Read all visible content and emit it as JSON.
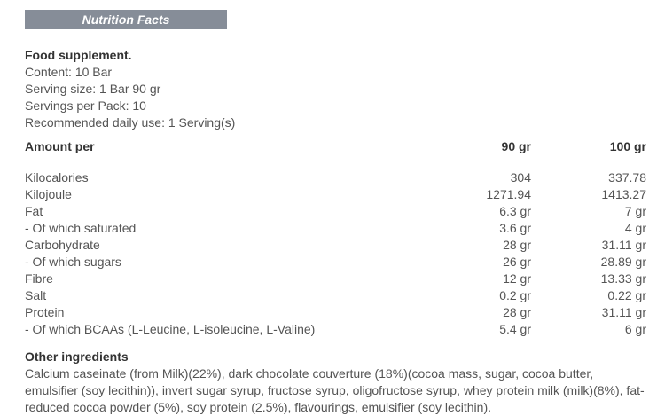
{
  "header": {
    "title": "Nutrition Facts"
  },
  "supplement": {
    "title": "Food supplement.",
    "lines": [
      "Content: 10 Bar",
      "Serving size: 1 Bar 90 gr",
      "Servings per Pack: 10",
      "Recommended daily use: 1 Serving(s)"
    ]
  },
  "table": {
    "header": {
      "label": "Amount per",
      "col90": "90 gr",
      "col100": "100 gr"
    },
    "rows": [
      {
        "label": "Kilocalories",
        "v90": "304",
        "v100": "337.78"
      },
      {
        "label": "Kilojoule",
        "v90": "1271.94",
        "v100": "1413.27"
      },
      {
        "label": "Fat",
        "v90": "6.3 gr",
        "v100": "7 gr"
      },
      {
        "label": "- Of which saturated",
        "v90": "3.6 gr",
        "v100": "4 gr"
      },
      {
        "label": "Carbohydrate",
        "v90": "28 gr",
        "v100": "31.11 gr"
      },
      {
        "label": "- Of which sugars",
        "v90": "26 gr",
        "v100": "28.89 gr"
      },
      {
        "label": "Fibre",
        "v90": "12 gr",
        "v100": "13.33 gr"
      },
      {
        "label": "Salt",
        "v90": "0.2 gr",
        "v100": "0.22 gr"
      },
      {
        "label": "Protein",
        "v90": "28 gr",
        "v100": "31.11 gr"
      },
      {
        "label": "- Of which BCAAs (L-Leucine, L-isoleucine, L-Valine)",
        "v90": "5.4 gr",
        "v100": "6 gr"
      }
    ]
  },
  "other_ingredients": {
    "title": "Other ingredients",
    "text": "Calcium caseinate (from Milk)(22%), dark chocolate couverture (18%)(cocoa mass, sugar, cocoa butter, emulsifier (soy lecithin)), invert sugar syrup, fructose syrup, oligofructose syrup, whey protein milk (milk)(8%), fat-reduced cocoa powder (5%), soy protein (2.5%), flavourings, emulsifier (soy lecithin)."
  },
  "colors": {
    "header_bar": "#868D98",
    "body_text": "#545454",
    "heading_text": "#333333",
    "header_bar_text": "#FFFFFF"
  }
}
